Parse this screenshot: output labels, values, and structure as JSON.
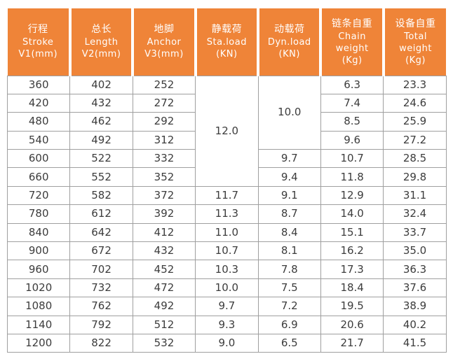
{
  "colors": {
    "header_bg": "#ef8438",
    "header_text": "#ffffff",
    "body_text": "#3c3c3c",
    "grid_line": "#9f9f9f"
  },
  "table": {
    "headers": [
      {
        "name": "stroke",
        "lines": [
          "行程",
          "Stroke",
          "V1(mm)"
        ]
      },
      {
        "name": "length",
        "lines": [
          "总长",
          "Length",
          "V2(mm)"
        ]
      },
      {
        "name": "anchor",
        "lines": [
          "地脚",
          "Anchor",
          "V3(mm)"
        ]
      },
      {
        "name": "static-load",
        "lines": [
          "静载荷",
          "Sta.load",
          "(KN)"
        ]
      },
      {
        "name": "dynamic-load",
        "lines": [
          "动载荷",
          "Dyn.load",
          "(KN)"
        ]
      },
      {
        "name": "chain-weight",
        "lines": [
          "链条自重",
          "Chain",
          "weight",
          "(Kg)"
        ]
      },
      {
        "name": "total-weight",
        "lines": [
          "设备自重",
          "Total",
          "weight",
          "(Kg)"
        ]
      }
    ],
    "rows": [
      [
        {
          "v": "360"
        },
        {
          "v": "402"
        },
        {
          "v": "252"
        },
        {
          "v": "12.0",
          "rowspan": 6
        },
        {
          "v": "10.0",
          "rowspan": 4
        },
        {
          "v": "6.3"
        },
        {
          "v": "23.3"
        }
      ],
      [
        {
          "v": "420"
        },
        {
          "v": "432"
        },
        {
          "v": "272"
        },
        {
          "v": "7.4"
        },
        {
          "v": "24.6"
        }
      ],
      [
        {
          "v": "480"
        },
        {
          "v": "462"
        },
        {
          "v": "292"
        },
        {
          "v": "8.5"
        },
        {
          "v": "25.9"
        }
      ],
      [
        {
          "v": "540"
        },
        {
          "v": "492"
        },
        {
          "v": "312"
        },
        {
          "v": "9.6"
        },
        {
          "v": "27.2"
        }
      ],
      [
        {
          "v": "600"
        },
        {
          "v": "522"
        },
        {
          "v": "332"
        },
        {
          "v": "9.7"
        },
        {
          "v": "10.7"
        },
        {
          "v": "28.5"
        }
      ],
      [
        {
          "v": "660"
        },
        {
          "v": "552"
        },
        {
          "v": "352"
        },
        {
          "v": "9.4"
        },
        {
          "v": "11.8"
        },
        {
          "v": "29.8"
        }
      ],
      [
        {
          "v": "720"
        },
        {
          "v": "582"
        },
        {
          "v": "372"
        },
        {
          "v": "11.7"
        },
        {
          "v": "9.1"
        },
        {
          "v": "12.9"
        },
        {
          "v": "31.1"
        }
      ],
      [
        {
          "v": "780"
        },
        {
          "v": "612"
        },
        {
          "v": "392"
        },
        {
          "v": "11.3"
        },
        {
          "v": "8.7"
        },
        {
          "v": "14.0"
        },
        {
          "v": "32.4"
        }
      ],
      [
        {
          "v": "840"
        },
        {
          "v": "642"
        },
        {
          "v": "412"
        },
        {
          "v": "11.0"
        },
        {
          "v": "8.4"
        },
        {
          "v": "15.1"
        },
        {
          "v": "33.7"
        }
      ],
      [
        {
          "v": "900"
        },
        {
          "v": "672"
        },
        {
          "v": "432"
        },
        {
          "v": "10.7"
        },
        {
          "v": "8.1"
        },
        {
          "v": "16.2"
        },
        {
          "v": "35.0"
        }
      ],
      [
        {
          "v": "960"
        },
        {
          "v": "702"
        },
        {
          "v": "452"
        },
        {
          "v": "10.3"
        },
        {
          "v": "7.8"
        },
        {
          "v": "17.3"
        },
        {
          "v": "36.3"
        }
      ],
      [
        {
          "v": "1020"
        },
        {
          "v": "732"
        },
        {
          "v": "472"
        },
        {
          "v": "10.0"
        },
        {
          "v": "7.5"
        },
        {
          "v": "18.4"
        },
        {
          "v": "37.6"
        }
      ],
      [
        {
          "v": "1080"
        },
        {
          "v": "762"
        },
        {
          "v": "492"
        },
        {
          "v": "9.7"
        },
        {
          "v": "7.2"
        },
        {
          "v": "19.5"
        },
        {
          "v": "38.9"
        }
      ],
      [
        {
          "v": "1140"
        },
        {
          "v": "792"
        },
        {
          "v": "512"
        },
        {
          "v": "9.3"
        },
        {
          "v": "6.9"
        },
        {
          "v": "20.6"
        },
        {
          "v": "40.2"
        }
      ],
      [
        {
          "v": "1200"
        },
        {
          "v": "822"
        },
        {
          "v": "532"
        },
        {
          "v": "9.0"
        },
        {
          "v": "6.5"
        },
        {
          "v": "21.7"
        },
        {
          "v": "41.5"
        }
      ]
    ]
  }
}
